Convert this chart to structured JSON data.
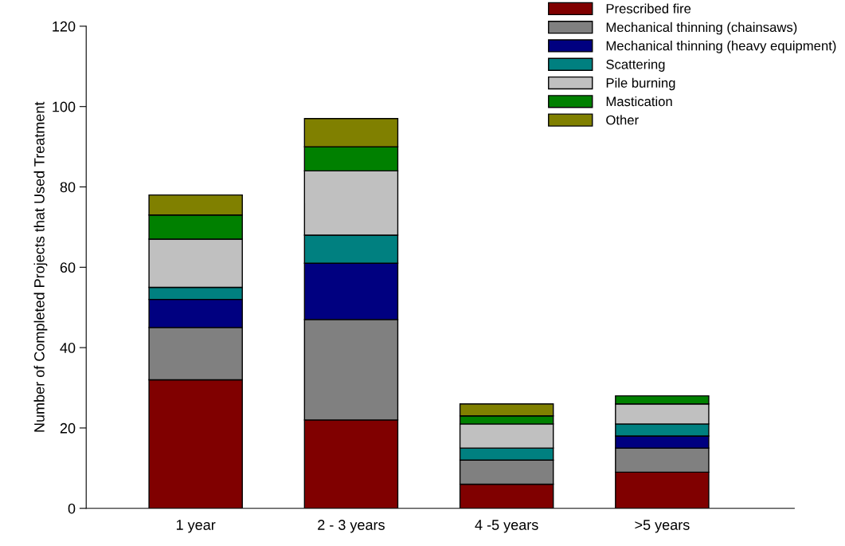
{
  "chart_data": {
    "type": "bar",
    "stacked": true,
    "ylabel": "Number of Completed Projects that Used Treatment",
    "categories": [
      "1 year",
      "2 - 3 years",
      "4 -5 years",
      ">5 years"
    ],
    "series": [
      {
        "name": "Prescribed fire",
        "color": "#800000",
        "values": [
          32,
          22,
          6,
          9
        ]
      },
      {
        "name": "Mechanical thinning (chainsaws)",
        "color": "#808080",
        "values": [
          13,
          25,
          6,
          6
        ]
      },
      {
        "name": "Mechanical thinning (heavy equipment)",
        "color": "#000080",
        "values": [
          7,
          14,
          0,
          3
        ]
      },
      {
        "name": "Scattering",
        "color": "#008080",
        "values": [
          3,
          7,
          3,
          3
        ]
      },
      {
        "name": "Pile burning",
        "color": "#c0c0c0",
        "values": [
          12,
          16,
          6,
          5
        ]
      },
      {
        "name": "Mastication",
        "color": "#008000",
        "values": [
          6,
          6,
          2,
          2
        ]
      },
      {
        "name": "Other",
        "color": "#808000",
        "values": [
          5,
          7,
          3,
          0
        ]
      }
    ],
    "ylim": [
      0,
      120
    ],
    "yticks": [
      0,
      20,
      40,
      60,
      80,
      100,
      120
    ],
    "grid": false,
    "legend": "top right"
  }
}
